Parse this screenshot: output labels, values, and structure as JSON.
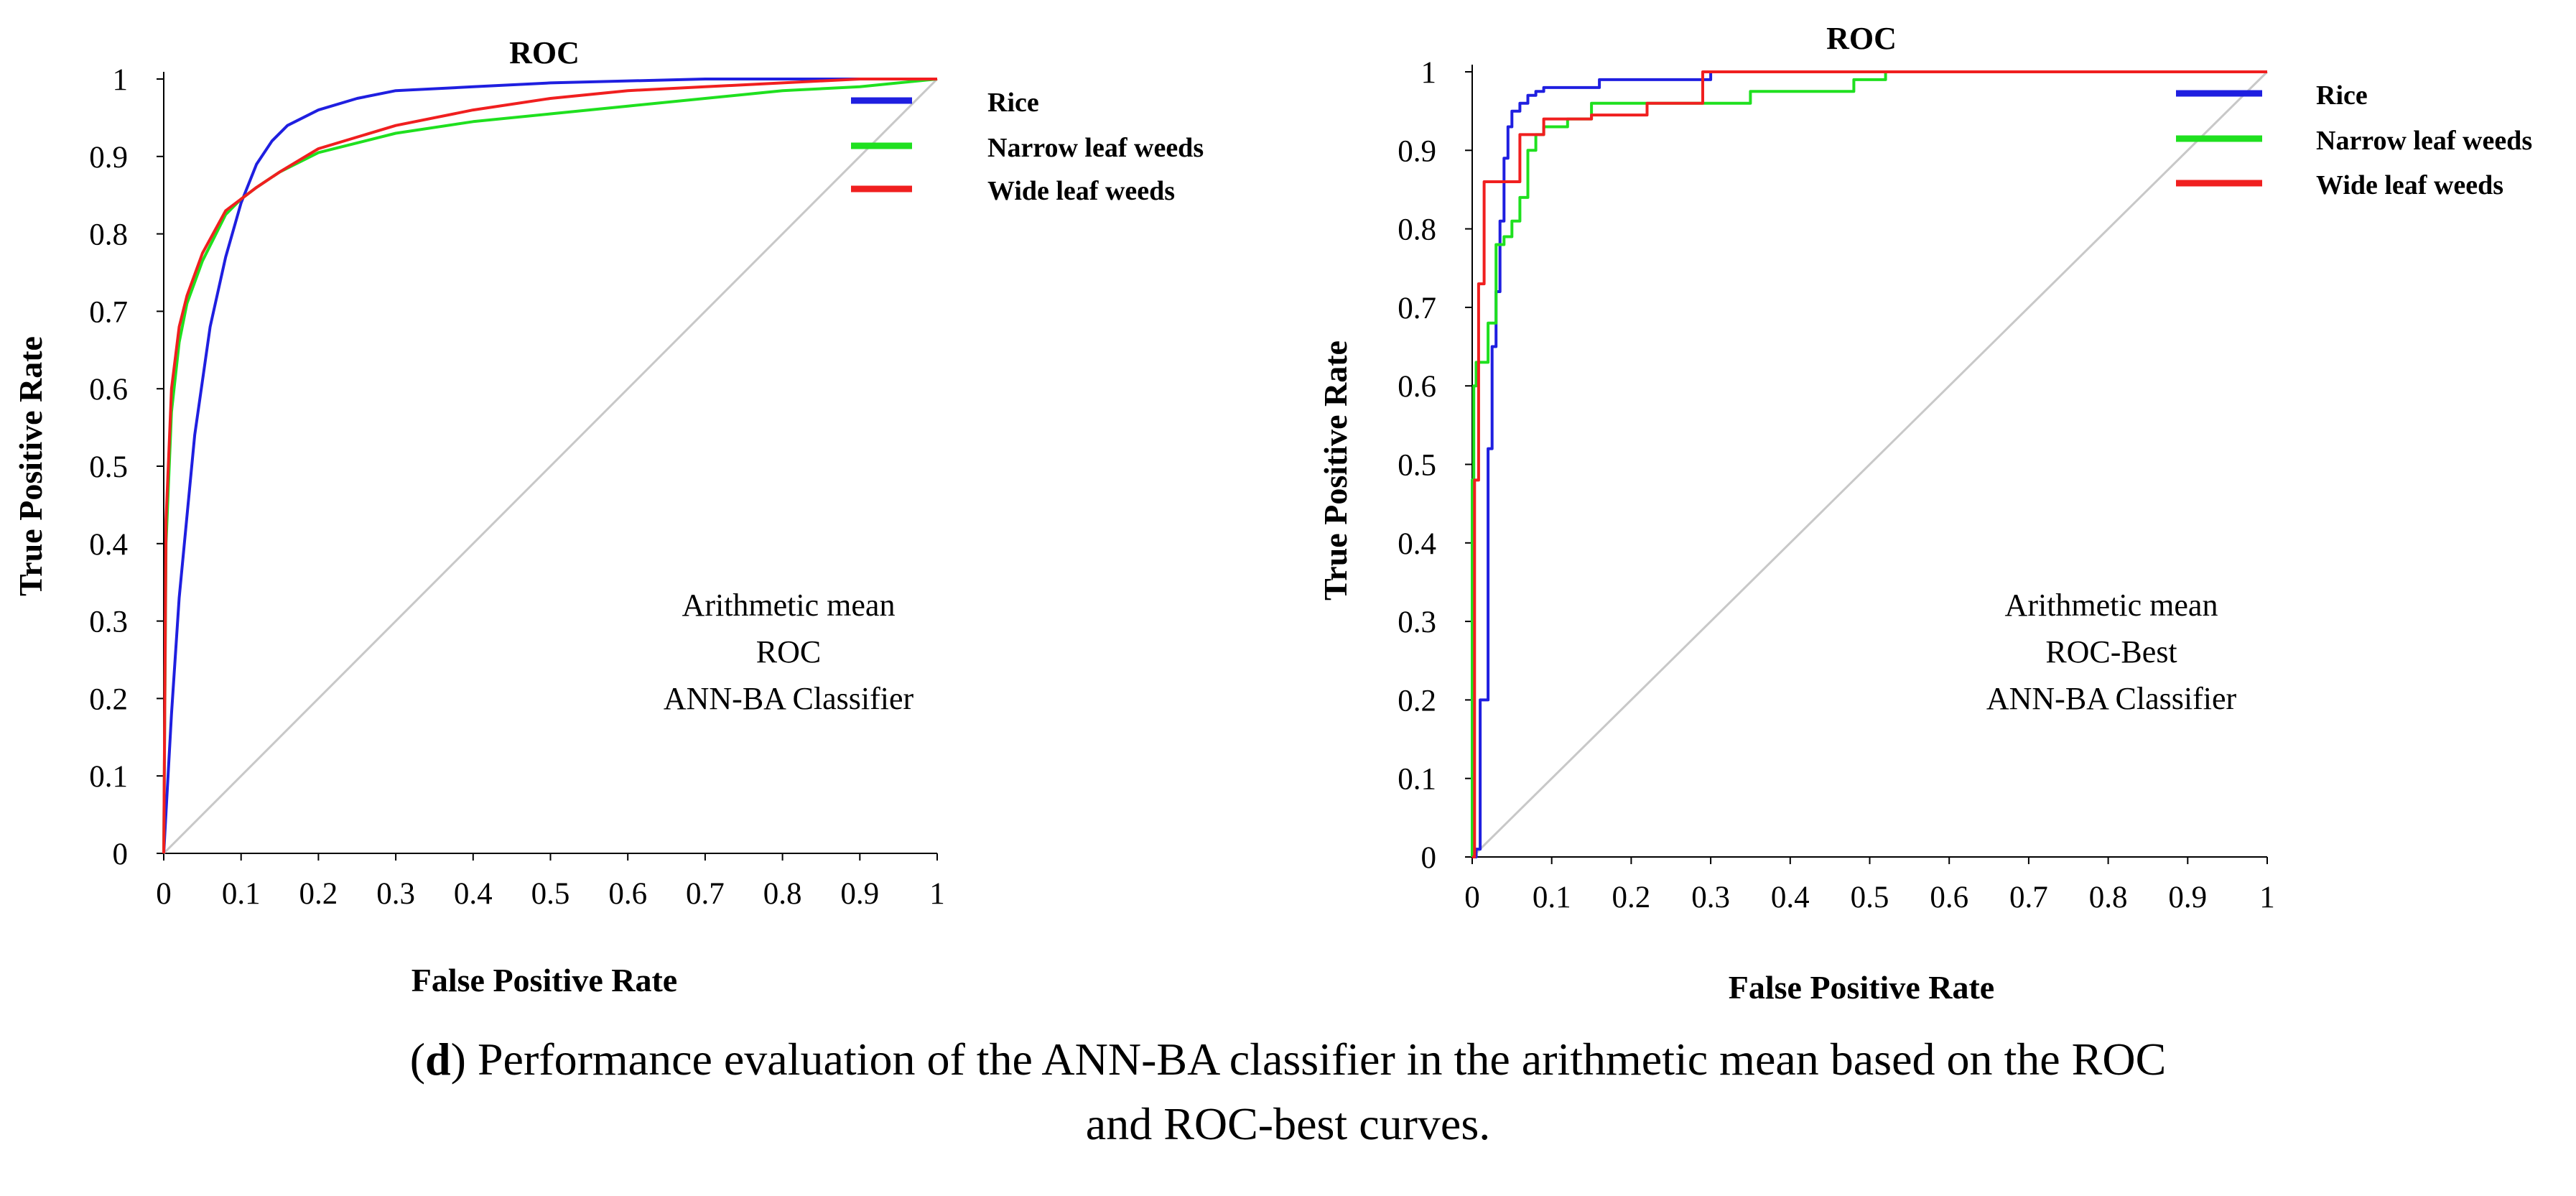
{
  "chart_data": [
    {
      "type": "line",
      "title": "ROC",
      "xlabel": "False Positive Rate",
      "ylabel": "True Positive Rate",
      "xlim": [
        0,
        1
      ],
      "ylim": [
        0,
        1
      ],
      "x_ticks": [
        "0",
        "0.1",
        "0.2",
        "0.3",
        "0.4",
        "0.5",
        "0.6",
        "0.7",
        "0.8",
        "0.9",
        "1"
      ],
      "y_ticks": [
        "0",
        "0.1",
        "0.2",
        "0.3",
        "0.4",
        "0.5",
        "0.6",
        "0.7",
        "0.8",
        "0.9",
        "1"
      ],
      "legend_position": "top-right",
      "annotation": [
        "Arithmetic mean",
        "ROC",
        "ANN-BA Classifier"
      ],
      "diagonal": {
        "x": [
          0,
          1
        ],
        "y": [
          0,
          1
        ],
        "color": "#c8c8c8"
      },
      "series": [
        {
          "name": "Rice",
          "color": "#1f1fe0",
          "x": [
            0,
            0.01,
            0.02,
            0.04,
            0.06,
            0.08,
            0.1,
            0.12,
            0.14,
            0.16,
            0.2,
            0.25,
            0.3,
            0.4,
            0.5,
            0.7,
            1.0
          ],
          "y": [
            0,
            0.18,
            0.33,
            0.54,
            0.68,
            0.77,
            0.84,
            0.89,
            0.92,
            0.94,
            0.96,
            0.975,
            0.985,
            0.99,
            0.995,
            1.0,
            1.0
          ]
        },
        {
          "name": "Narrow leaf weeds",
          "color": "#1fe01f",
          "x": [
            0,
            0.003,
            0.01,
            0.02,
            0.03,
            0.05,
            0.08,
            0.1,
            0.12,
            0.15,
            0.2,
            0.3,
            0.4,
            0.5,
            0.6,
            0.7,
            0.8,
            0.9,
            1.0
          ],
          "y": [
            0,
            0.4,
            0.57,
            0.66,
            0.71,
            0.765,
            0.825,
            0.845,
            0.86,
            0.88,
            0.905,
            0.93,
            0.945,
            0.955,
            0.965,
            0.975,
            0.985,
            0.99,
            1.0
          ]
        },
        {
          "name": "Wide leaf weeds",
          "color": "#f01f1f",
          "x": [
            0,
            0.003,
            0.01,
            0.02,
            0.03,
            0.05,
            0.08,
            0.1,
            0.12,
            0.15,
            0.2,
            0.3,
            0.4,
            0.5,
            0.6,
            0.7,
            0.8,
            0.9,
            1.0
          ],
          "y": [
            0,
            0.43,
            0.6,
            0.68,
            0.72,
            0.775,
            0.83,
            0.845,
            0.86,
            0.88,
            0.91,
            0.94,
            0.96,
            0.975,
            0.985,
            0.99,
            0.995,
            1.0,
            1.0
          ]
        }
      ]
    },
    {
      "type": "line",
      "title": "ROC",
      "xlabel": "False Positive Rate",
      "ylabel": "True Positive Rate",
      "xlim": [
        0,
        1
      ],
      "ylim": [
        0,
        1
      ],
      "x_ticks": [
        "0",
        "0.1",
        "0.2",
        "0.3",
        "0.4",
        "0.5",
        "0.6",
        "0.7",
        "0.8",
        "0.9",
        "1"
      ],
      "y_ticks": [
        "0",
        "0.1",
        "0.2",
        "0.3",
        "0.4",
        "0.5",
        "0.6",
        "0.7",
        "0.8",
        "0.9",
        "1"
      ],
      "legend_position": "top-right",
      "annotation": [
        "Arithmetic mean",
        "ROC-Best",
        "ANN-BA Classifier"
      ],
      "diagonal": {
        "x": [
          0,
          1
        ],
        "y": [
          0,
          1
        ],
        "color": "#c8c8c8"
      },
      "series": [
        {
          "name": "Rice",
          "color": "#1f1fe0",
          "x": [
            0,
            0.005,
            0.005,
            0.01,
            0.01,
            0.02,
            0.02,
            0.025,
            0.025,
            0.03,
            0.03,
            0.035,
            0.035,
            0.04,
            0.04,
            0.045,
            0.045,
            0.05,
            0.05,
            0.06,
            0.06,
            0.07,
            0.07,
            0.08,
            0.08,
            0.09,
            0.09,
            0.16,
            0.16,
            0.3,
            0.3,
            1.0
          ],
          "y": [
            0,
            0,
            0.01,
            0.01,
            0.2,
            0.2,
            0.52,
            0.52,
            0.65,
            0.65,
            0.72,
            0.72,
            0.81,
            0.81,
            0.89,
            0.89,
            0.93,
            0.93,
            0.95,
            0.95,
            0.96,
            0.96,
            0.97,
            0.97,
            0.975,
            0.975,
            0.98,
            0.98,
            0.99,
            0.99,
            1.0,
            1.0
          ]
        },
        {
          "name": "Narrow leaf weeds",
          "color": "#1fe01f",
          "x": [
            0,
            0,
            0.002,
            0.002,
            0.005,
            0.005,
            0.02,
            0.02,
            0.03,
            0.03,
            0.04,
            0.04,
            0.05,
            0.05,
            0.06,
            0.06,
            0.07,
            0.07,
            0.08,
            0.08,
            0.09,
            0.09,
            0.12,
            0.12,
            0.15,
            0.15,
            0.35,
            0.35,
            0.48,
            0.48,
            0.52,
            0.52,
            1.0
          ],
          "y": [
            0,
            0.48,
            0.48,
            0.6,
            0.6,
            0.63,
            0.63,
            0.68,
            0.68,
            0.78,
            0.78,
            0.79,
            0.79,
            0.81,
            0.81,
            0.84,
            0.84,
            0.9,
            0.9,
            0.92,
            0.92,
            0.93,
            0.93,
            0.94,
            0.94,
            0.96,
            0.96,
            0.975,
            0.975,
            0.99,
            0.99,
            1.0,
            1.0
          ]
        },
        {
          "name": "Wide leaf weeds",
          "color": "#f01f1f",
          "x": [
            0,
            0.003,
            0.003,
            0.008,
            0.008,
            0.015,
            0.015,
            0.06,
            0.06,
            0.09,
            0.09,
            0.15,
            0.15,
            0.22,
            0.22,
            0.29,
            0.29,
            1.0
          ],
          "y": [
            0,
            0,
            0.48,
            0.48,
            0.73,
            0.73,
            0.86,
            0.86,
            0.92,
            0.92,
            0.94,
            0.94,
            0.945,
            0.945,
            0.96,
            0.96,
            1.0,
            1.0
          ]
        }
      ]
    }
  ],
  "caption": {
    "label": "d",
    "line1": "Performance evaluation of the ANN-BA classifier in the arithmetic mean based on the ROC",
    "line2": "and ROC-best curves."
  }
}
